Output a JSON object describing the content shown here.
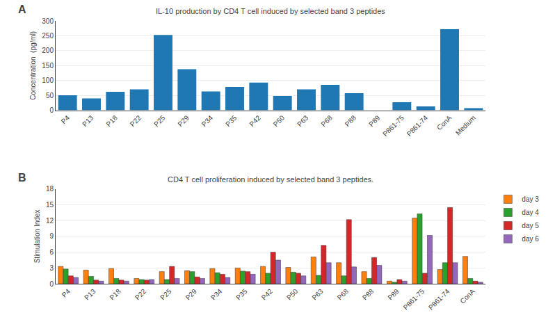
{
  "chart_data": [
    {
      "type": "bar",
      "title": "IL-10 production by CD4 T cell induced by selected band 3 peptides",
      "annotations": [
        "A"
      ],
      "ylabel": "Concentration  (pg/ml)",
      "categories": [
        "P4",
        "P13",
        "P18",
        "P22",
        "P25",
        "P29",
        "P34",
        "P35",
        "P42",
        "P50",
        "P63",
        "P68",
        "P88",
        "P89",
        "P861-75",
        "P861-74",
        "ConA",
        "Medium"
      ],
      "values": [
        50,
        40,
        62,
        70,
        253,
        138,
        63,
        78,
        93,
        48,
        70,
        85,
        57,
        0,
        27,
        13,
        272,
        7
      ],
      "ylim": [
        0,
        300
      ],
      "yticks": [
        0,
        50,
        100,
        150,
        200,
        250,
        300
      ],
      "grid": true
    },
    {
      "type": "bar",
      "title": "CD4 T cell proliferation induced by selected band 3 peptides.",
      "annotations": [
        "B"
      ],
      "ylabel": "Stimulation Index",
      "categories": [
        "P4",
        "P13",
        "P18",
        "P22",
        "P25",
        "P29",
        "P34",
        "P35",
        "P42",
        "P50",
        "P63",
        "P68",
        "P88",
        "P89",
        "P861-75",
        "P861-74",
        "ConA"
      ],
      "series": [
        {
          "name": "day 3",
          "values": [
            3.3,
            2.6,
            2.9,
            1.0,
            2.3,
            2.5,
            2.9,
            3.0,
            3.3,
            3.1,
            5.1,
            4.0,
            2.3,
            0.5,
            12.5,
            2.7,
            5.2
          ]
        },
        {
          "name": "day 4",
          "values": [
            2.8,
            1.4,
            1.0,
            0.8,
            0.8,
            2.3,
            2.1,
            2.4,
            2.0,
            2.2,
            1.6,
            1.5,
            1.0,
            0.3,
            13.3,
            4.0,
            1.0
          ]
        },
        {
          "name": "day 5",
          "values": [
            1.5,
            0.7,
            0.7,
            0.7,
            3.3,
            1.3,
            1.8,
            2.3,
            6.0,
            2.0,
            7.3,
            12.2,
            5.0,
            0.8,
            2.0,
            14.5,
            0.5
          ]
        },
        {
          "name": "day 6",
          "values": [
            1.2,
            0.5,
            0.5,
            0.8,
            1.0,
            1.0,
            1.2,
            1.8,
            4.5,
            1.5,
            4.0,
            3.2,
            3.5,
            0.5,
            9.2,
            4.0,
            0.3
          ]
        }
      ],
      "ylim": [
        0,
        18
      ],
      "yticks": [
        0,
        3,
        6,
        9,
        12,
        15,
        18
      ],
      "grid": true,
      "legend": "right"
    }
  ]
}
